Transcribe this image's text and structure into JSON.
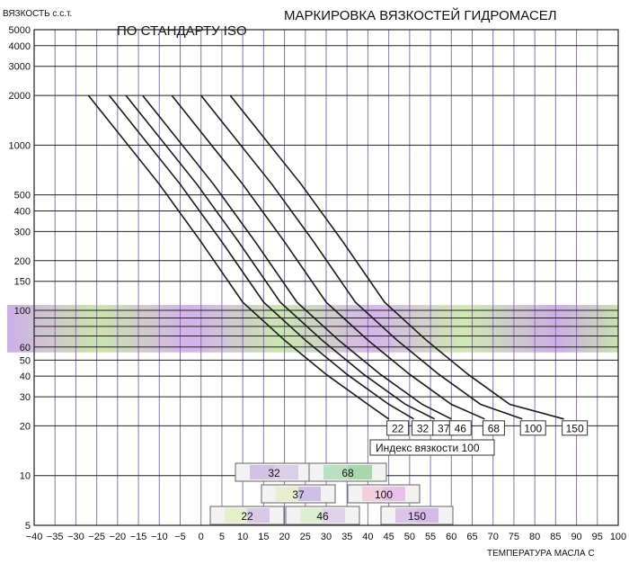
{
  "title": "МАРКИРОВКА ВЯЗКОСТЕЙ ГИДРОМАСЕЛ",
  "subtitle": "ПО СТАНДАРТУ ISO",
  "chart_data": {
    "type": "line",
    "ylabel": "ВЯЗКОСТЬ с.с.т.",
    "xlabel": "ТЕМПЕРАТУРА МАСЛА С",
    "yscale": "log",
    "xlim": [
      -40,
      100
    ],
    "ylim": [
      5,
      5000
    ],
    "grid": true,
    "x_ticks": [
      -40,
      -35,
      -30,
      -25,
      -20,
      -15,
      -10,
      -5,
      0,
      5,
      10,
      15,
      20,
      25,
      30,
      35,
      40,
      45,
      50,
      55,
      60,
      65,
      70,
      75,
      80,
      85,
      90,
      95,
      100
    ],
    "x_tick_labels": [
      "−40",
      "−35",
      "−30",
      "−25",
      "−20",
      "−15",
      "−10",
      "−5",
      "0",
      "5",
      "10",
      "15",
      "20",
      "25",
      "30",
      "35",
      "40",
      "45",
      "50",
      "55",
      "60",
      "65",
      "70",
      "75",
      "80",
      "85",
      "90",
      "95",
      "100"
    ],
    "y_ticks": [
      5,
      10,
      20,
      30,
      40,
      50,
      60,
      70,
      80,
      90,
      100,
      150,
      200,
      300,
      400,
      500,
      1000,
      2000,
      3000,
      4000,
      5000
    ],
    "y_tick_labels": [
      "5",
      "10",
      "20",
      "30",
      "40",
      "50",
      "60",
      "",
      "",
      "",
      "100",
      "150",
      "200",
      "300",
      "400",
      "500",
      "1000",
      "2000",
      "3000",
      "4000",
      "5000"
    ],
    "band": {
      "from": 60,
      "to": 100
    },
    "series": [
      {
        "name": "22",
        "points": [
          [
            -27,
            2000
          ],
          [
            -10,
            580
          ],
          [
            0,
            260
          ],
          [
            10,
            112
          ],
          [
            20,
            66
          ],
          [
            30,
            41
          ],
          [
            40,
            27
          ],
          [
            45,
            22
          ]
        ]
      },
      {
        "name": "32",
        "points": [
          [
            -22,
            2000
          ],
          [
            -5,
            580
          ],
          [
            5,
            260
          ],
          [
            15,
            112
          ],
          [
            25,
            66
          ],
          [
            35,
            41
          ],
          [
            45,
            27
          ],
          [
            51,
            22
          ]
        ]
      },
      {
        "name": "37",
        "points": [
          [
            -18,
            2000
          ],
          [
            -1,
            580
          ],
          [
            9,
            260
          ],
          [
            19,
            112
          ],
          [
            29,
            66
          ],
          [
            39,
            41
          ],
          [
            49,
            27
          ],
          [
            56,
            22
          ]
        ]
      },
      {
        "name": "46",
        "points": [
          [
            -14,
            2000
          ],
          [
            3,
            580
          ],
          [
            13,
            260
          ],
          [
            23,
            112
          ],
          [
            33,
            66
          ],
          [
            43,
            41
          ],
          [
            53,
            27
          ],
          [
            60,
            22
          ]
        ]
      },
      {
        "name": "68",
        "points": [
          [
            -7,
            2000
          ],
          [
            10,
            580
          ],
          [
            20,
            260
          ],
          [
            30,
            112
          ],
          [
            40,
            66
          ],
          [
            50,
            41
          ],
          [
            60,
            27
          ],
          [
            68,
            22
          ]
        ]
      },
      {
        "name": "100",
        "points": [
          [
            0,
            2000
          ],
          [
            17,
            580
          ],
          [
            27,
            260
          ],
          [
            37,
            112
          ],
          [
            47,
            66
          ],
          [
            57,
            41
          ],
          [
            67,
            27
          ],
          [
            77,
            22
          ]
        ]
      },
      {
        "name": "150",
        "points": [
          [
            7,
            2000
          ],
          [
            24,
            580
          ],
          [
            34,
            260
          ],
          [
            44,
            112
          ],
          [
            54,
            66
          ],
          [
            64,
            41
          ],
          [
            74,
            27
          ],
          [
            87,
            22
          ]
        ]
      }
    ],
    "legend_title": "Индекс вязкости 100",
    "grade_boxes": [
      {
        "label": "32",
        "y": 10,
        "x_from": 10,
        "x_to": 38,
        "colors": [
          "#d3c2e4",
          "#d9cfe6"
        ]
      },
      {
        "label": "68",
        "y": 10,
        "x_from": 40,
        "x_to": 69,
        "colors": [
          "#b9e0c2",
          "#a9d6ad"
        ]
      },
      {
        "label": "37",
        "y": 8,
        "x_from": 5,
        "x_to": 27,
        "colors": [
          "#e6eecf",
          "#cdbfe6"
        ]
      },
      {
        "label": "100",
        "y": 8,
        "x_from": 58,
        "x_to": 53,
        "colors": [
          "#f2cfdc",
          "#e7c1ea"
        ]
      },
      {
        "label": "22",
        "y": 6,
        "x_from": 4,
        "x_to": 13,
        "colors": [
          "#e4f1c8",
          "#d8c7e6"
        ]
      },
      {
        "label": "46",
        "y": 6,
        "x_from": 9,
        "x_to": 37,
        "colors": [
          "#dcefd0",
          "#dfd2ea"
        ]
      },
      {
        "label": "150",
        "y": 6,
        "x_from": 46,
        "x_to": 68,
        "colors": [
          "#dbc4ea",
          "#d3bbe6"
        ]
      }
    ]
  }
}
